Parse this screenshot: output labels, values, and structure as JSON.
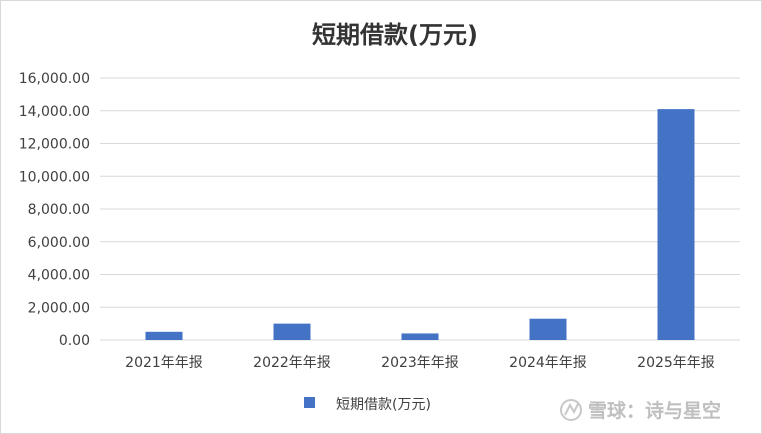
{
  "chart_data": {
    "type": "bar",
    "title": "短期借款(万元)",
    "categories": [
      "2021年年报",
      "2022年年报",
      "2023年年报",
      "2024年年报",
      "2025年年报"
    ],
    "series": [
      {
        "name": "短期借款(万元)",
        "values": [
          500,
          1000,
          400,
          1300,
          14100
        ],
        "color": "#4472c4"
      }
    ],
    "yticks": [
      "0.00",
      "2,000.00",
      "4,000.00",
      "6,000.00",
      "8,000.00",
      "10,000.00",
      "12,000.00",
      "14,000.00",
      "16,000.00"
    ],
    "ylim": [
      0,
      16000
    ],
    "grid": true,
    "legend_position": "bottom"
  },
  "watermark": {
    "text": "雪球：诗与星空",
    "icon": "snowball-logo-icon"
  },
  "colors": {
    "bar": "#4472c4",
    "grid": "#d9d9d9",
    "border": "#d9d9d9"
  }
}
